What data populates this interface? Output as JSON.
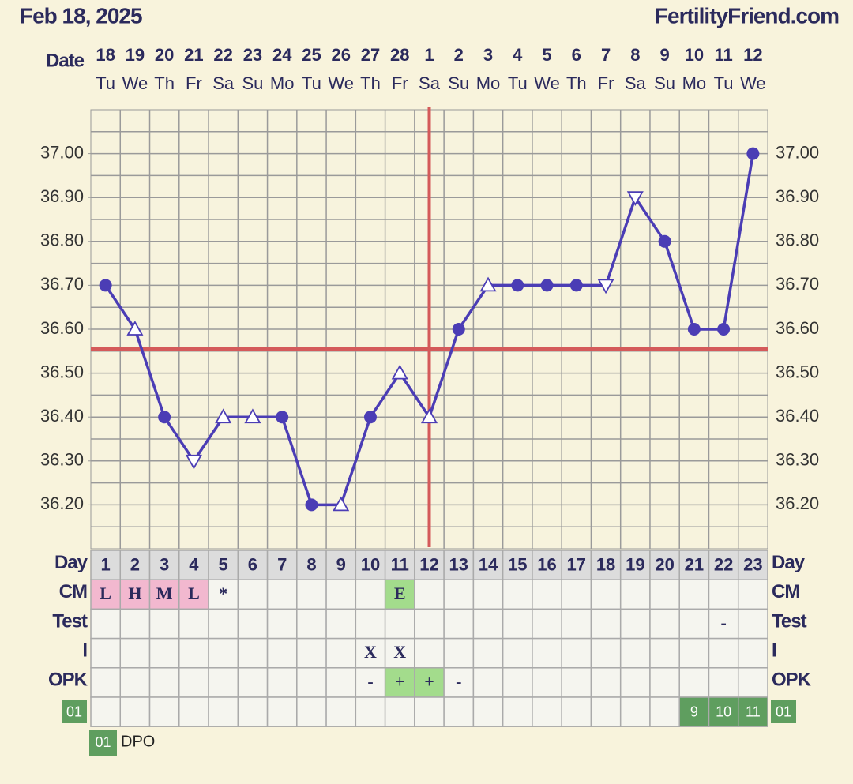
{
  "header": {
    "date": "Feb 18, 2025",
    "site": "FertilityFriend.com"
  },
  "chart_data": {
    "type": "line",
    "date_label": "Date",
    "categories": [
      "18",
      "19",
      "20",
      "21",
      "22",
      "23",
      "24",
      "25",
      "26",
      "27",
      "28",
      "1",
      "2",
      "3",
      "4",
      "5",
      "6",
      "7",
      "8",
      "9",
      "10",
      "11",
      "12"
    ],
    "weekdays": [
      "Tu",
      "We",
      "Th",
      "Fr",
      "Sa",
      "Su",
      "Mo",
      "Tu",
      "We",
      "Th",
      "Fr",
      "Sa",
      "Su",
      "Mo",
      "Tu",
      "We",
      "Th",
      "Fr",
      "Sa",
      "Su",
      "Mo",
      "Tu",
      "We"
    ],
    "values": [
      36.7,
      36.6,
      36.4,
      36.3,
      36.4,
      36.4,
      36.4,
      36.2,
      36.2,
      36.4,
      36.5,
      36.4,
      36.6,
      36.7,
      36.7,
      36.7,
      36.7,
      36.7,
      36.9,
      36.8,
      36.6,
      36.6,
      37.0
    ],
    "marker_styles": [
      "dot",
      "up",
      "dot",
      "down",
      "up",
      "up",
      "dot",
      "dot",
      "up",
      "dot",
      "up",
      "up",
      "dot",
      "up",
      "dot",
      "dot",
      "dot",
      "down",
      "down",
      "dot",
      "dot",
      "dot",
      "dot"
    ],
    "color": "#4b3db5",
    "ylim": [
      36.1,
      37.1
    ],
    "yticks": [
      {
        "value": 36.2,
        "label": "36.20"
      },
      {
        "value": 36.3,
        "label": "36.30"
      },
      {
        "value": 36.4,
        "label": "36.40"
      },
      {
        "value": 36.5,
        "label": "36.50"
      },
      {
        "value": 36.6,
        "label": "36.60"
      },
      {
        "value": 36.7,
        "label": "36.70"
      },
      {
        "value": 36.8,
        "label": "36.80"
      },
      {
        "value": 36.9,
        "label": "36.90"
      },
      {
        "value": 37.0,
        "label": "37.00"
      }
    ],
    "ygrid": [
      36.15,
      36.2,
      36.25,
      36.3,
      36.35,
      36.4,
      36.45,
      36.5,
      36.55,
      36.6,
      36.65,
      36.7,
      36.75,
      36.8,
      36.85,
      36.9,
      36.95,
      37.0,
      37.05
    ],
    "coverline": 36.555,
    "coverline_color": "#d45a5a",
    "ovulation_day": 12,
    "ovulation_color": "#d45a5a"
  },
  "table": {
    "rows": [
      {
        "label": "Day",
        "fill": "#dcdcdc",
        "cells": [
          1,
          2,
          3,
          4,
          5,
          6,
          7,
          8,
          9,
          10,
          11,
          12,
          13,
          14,
          15,
          16,
          17,
          18,
          19,
          20,
          21,
          22,
          23
        ]
      },
      {
        "label": "CM",
        "cells": [
          "L",
          "H",
          "M",
          "L",
          "*",
          null,
          null,
          null,
          null,
          null,
          "E",
          null,
          null,
          null,
          null,
          null,
          null,
          null,
          null,
          null,
          null,
          null,
          null
        ],
        "colors": [
          "#f2b8cf",
          "#f2b8cf",
          "#f2b8cf",
          "#f2b8cf",
          null,
          null,
          null,
          null,
          null,
          null,
          "#a3dc8c",
          null,
          null,
          null,
          null,
          null,
          null,
          null,
          null,
          null,
          null,
          null,
          null
        ]
      },
      {
        "label": "Test",
        "cells": [
          null,
          null,
          null,
          null,
          null,
          null,
          null,
          null,
          null,
          null,
          null,
          null,
          null,
          null,
          null,
          null,
          null,
          null,
          null,
          null,
          null,
          "-",
          null
        ]
      },
      {
        "label": "I",
        "cells": [
          null,
          null,
          null,
          null,
          null,
          null,
          null,
          null,
          null,
          "X",
          "X",
          null,
          null,
          null,
          null,
          null,
          null,
          null,
          null,
          null,
          null,
          null,
          null
        ]
      },
      {
        "label": "OPK",
        "cells": [
          null,
          null,
          null,
          null,
          null,
          null,
          null,
          null,
          null,
          "-",
          "+",
          "+",
          "-",
          null,
          null,
          null,
          null,
          null,
          null,
          null,
          null,
          null,
          null
        ],
        "colors": [
          null,
          null,
          null,
          null,
          null,
          null,
          null,
          null,
          null,
          null,
          "#a3dc8c",
          "#a3dc8c",
          null,
          null,
          null,
          null,
          null,
          null,
          null,
          null,
          null,
          null,
          null
        ]
      },
      {
        "label": "01",
        "label_color": "#5f9e5f",
        "text_color": "#ffffff",
        "cells": [
          null,
          null,
          null,
          null,
          null,
          null,
          null,
          null,
          null,
          null,
          null,
          null,
          null,
          null,
          null,
          null,
          null,
          null,
          null,
          null,
          "9",
          "10",
          "11"
        ],
        "colors": [
          null,
          null,
          null,
          null,
          null,
          null,
          null,
          null,
          null,
          null,
          null,
          null,
          null,
          null,
          null,
          null,
          null,
          null,
          null,
          null,
          "#5f9e5f",
          "#5f9e5f",
          "#5f9e5f"
        ]
      }
    ]
  },
  "legend": {
    "badge": "01",
    "text": "DPO",
    "color": "#5f9e5f"
  }
}
